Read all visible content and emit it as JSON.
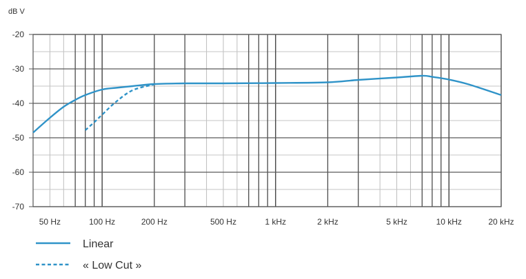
{
  "chart_data": {
    "type": "line",
    "title": "",
    "ylabel": "dB V",
    "xlabel": "",
    "xscale": "log",
    "xlim": [
      40,
      20000
    ],
    "ylim": [
      -70,
      -20
    ],
    "grid": true,
    "legend_position": "bottom-left",
    "x_ticks": [
      {
        "value": 50,
        "label": "50 Hz"
      },
      {
        "value": 100,
        "label": "100 Hz"
      },
      {
        "value": 200,
        "label": "200 Hz"
      },
      {
        "value": 500,
        "label": "500 Hz"
      },
      {
        "value": 1000,
        "label": "1 kHz"
      },
      {
        "value": 2000,
        "label": "2 kHz"
      },
      {
        "value": 5000,
        "label": "5 kHz"
      },
      {
        "value": 10000,
        "label": "10 kHz"
      },
      {
        "value": 20000,
        "label": "20 kHz"
      }
    ],
    "y_ticks": [
      {
        "value": -20,
        "label": "-20"
      },
      {
        "value": -30,
        "label": "-30"
      },
      {
        "value": -40,
        "label": "-40"
      },
      {
        "value": -50,
        "label": "-50"
      },
      {
        "value": -60,
        "label": "-60"
      },
      {
        "value": -70,
        "label": "-70"
      }
    ],
    "series": [
      {
        "name": "Linear",
        "style": "solid",
        "color": "#2f93c8",
        "x": [
          40,
          50,
          60,
          70,
          80,
          100,
          120,
          150,
          200,
          300,
          500,
          1000,
          2000,
          3000,
          5000,
          7000,
          8000,
          10000,
          13000,
          20000
        ],
        "y": [
          -48.5,
          -44.2,
          -41,
          -39,
          -37.6,
          -36,
          -35.5,
          -35,
          -34.4,
          -34.2,
          -34.2,
          -34.1,
          -33.9,
          -33.2,
          -32.5,
          -32,
          -32.3,
          -33.1,
          -34.5,
          -37.6
        ]
      },
      {
        "name": "« Low Cut »",
        "style": "dashed",
        "color": "#2f93c8",
        "x": [
          80,
          90,
          100,
          120,
          150,
          200
        ],
        "y": [
          -47.8,
          -45.5,
          -43.3,
          -39.6,
          -36.2,
          -34.5
        ]
      }
    ]
  }
}
